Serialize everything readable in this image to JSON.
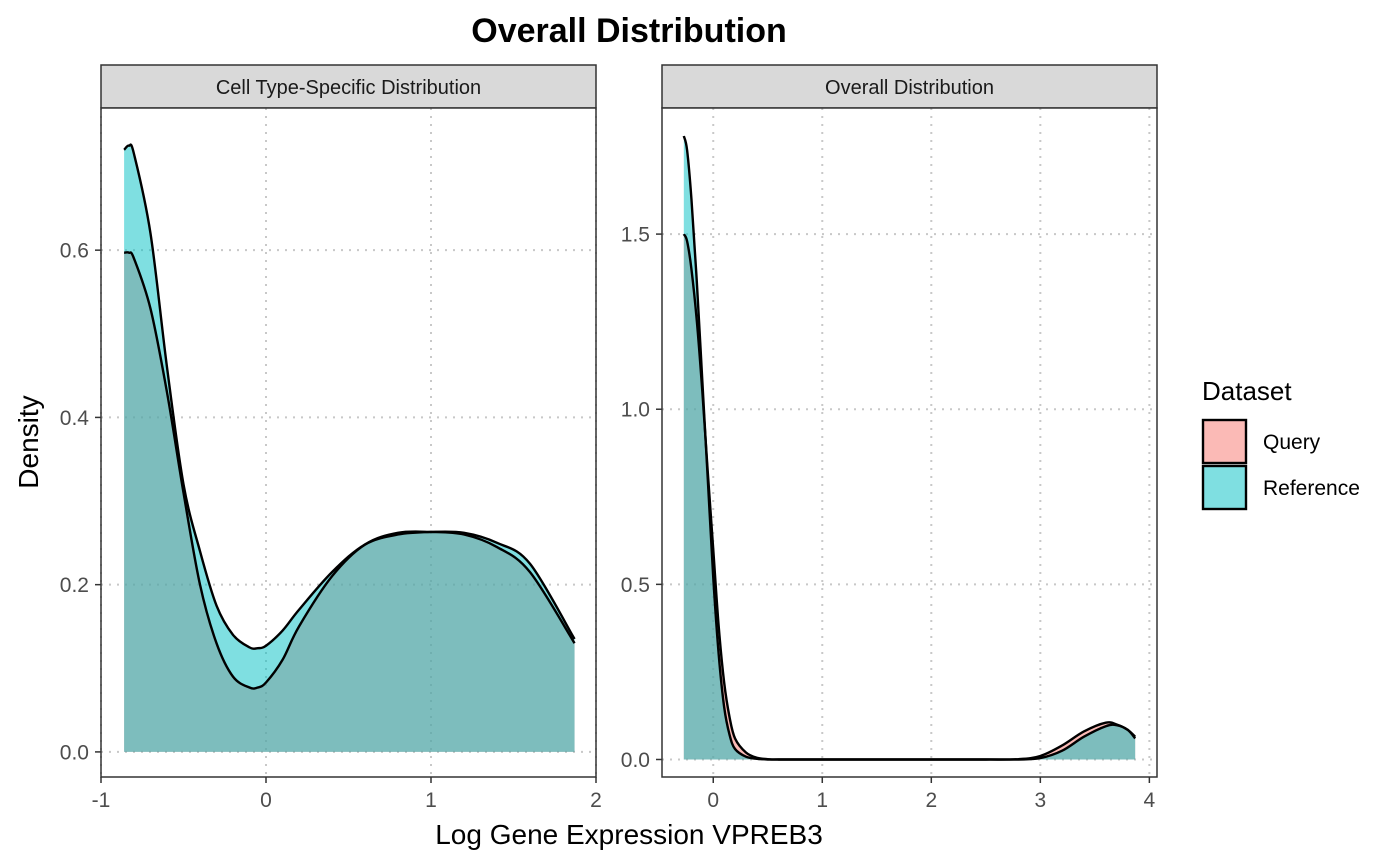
{
  "chart_data": {
    "type": "area",
    "title": "Overall Distribution",
    "xlabel": "Log Gene Expression VPREB3",
    "ylabel": "Density",
    "legend": {
      "title": "Dataset",
      "placement": "right",
      "entries": [
        {
          "name": "Query",
          "color": "#F8766D"
        },
        {
          "name": "Reference",
          "color": "#00BFC4"
        }
      ]
    },
    "panels": [
      {
        "strip": "Cell Type-Specific Distribution",
        "xlim": [
          -1,
          2
        ],
        "ylim": [
          -0.03,
          0.77
        ],
        "xticks": [
          -1,
          0,
          1,
          2
        ],
        "xtick_labels": [
          "-1",
          "0",
          "1",
          "2"
        ],
        "yticks": [
          0.0,
          0.2,
          0.4,
          0.6
        ],
        "ytick_labels": [
          "0.0",
          "0.2",
          "0.4",
          "0.6"
        ],
        "grid": true,
        "series": [
          {
            "name": "Query",
            "x": [
              -0.86,
              -0.83,
              -0.8,
              -0.7,
              -0.6,
              -0.5,
              -0.4,
              -0.3,
              -0.2,
              -0.1,
              -0.05,
              0.0,
              0.1,
              0.2,
              0.4,
              0.6,
              0.8,
              1.0,
              1.2,
              1.4,
              1.6,
              1.87
            ],
            "y": [
              0.597,
              0.597,
              0.59,
              0.53,
              0.43,
              0.31,
              0.2,
              0.13,
              0.09,
              0.077,
              0.077,
              0.083,
              0.11,
              0.15,
              0.21,
              0.248,
              0.262,
              0.263,
              0.26,
              0.245,
              0.215,
              0.13
            ]
          },
          {
            "name": "Reference",
            "x": [
              -0.86,
              -0.83,
              -0.8,
              -0.7,
              -0.6,
              -0.5,
              -0.4,
              -0.3,
              -0.2,
              -0.1,
              -0.05,
              0.0,
              0.1,
              0.2,
              0.4,
              0.6,
              0.8,
              1.0,
              1.2,
              1.4,
              1.6,
              1.87
            ],
            "y": [
              0.72,
              0.725,
              0.715,
              0.62,
              0.46,
              0.32,
              0.24,
              0.175,
              0.14,
              0.125,
              0.124,
              0.127,
              0.145,
              0.17,
              0.215,
              0.248,
              0.26,
              0.263,
              0.262,
              0.25,
              0.225,
              0.135
            ]
          }
        ]
      },
      {
        "strip": "Overall Distribution",
        "xlim": [
          -0.47,
          4.07
        ],
        "ylim": [
          -0.05,
          1.86
        ],
        "xticks": [
          0,
          1,
          2,
          3,
          4
        ],
        "xtick_labels": [
          "0",
          "1",
          "2",
          "3",
          "4"
        ],
        "yticks": [
          0.0,
          0.5,
          1.0,
          1.5
        ],
        "ytick_labels": [
          "0.0",
          "0.5",
          "1.0",
          "1.5"
        ],
        "grid": true,
        "series": [
          {
            "name": "Query",
            "x": [
              -0.27,
              -0.24,
              -0.2,
              -0.15,
              -0.1,
              -0.05,
              0.0,
              0.05,
              0.1,
              0.15,
              0.2,
              0.3,
              0.4,
              0.5,
              0.6,
              0.8,
              1.0,
              1.5,
              2.0,
              2.5,
              2.8,
              3.0,
              3.2,
              3.4,
              3.6,
              3.7,
              3.8,
              3.87
            ],
            "y": [
              1.5,
              1.48,
              1.4,
              1.25,
              1.05,
              0.82,
              0.6,
              0.38,
              0.22,
              0.12,
              0.06,
              0.02,
              0.005,
              0.001,
              0.0,
              0.0,
              0.0,
              0.0,
              0.0,
              0.0,
              0.001,
              0.01,
              0.04,
              0.08,
              0.105,
              0.1,
              0.085,
              0.065
            ]
          },
          {
            "name": "Reference",
            "x": [
              -0.27,
              -0.24,
              -0.2,
              -0.15,
              -0.1,
              -0.05,
              0.0,
              0.05,
              0.1,
              0.15,
              0.2,
              0.3,
              0.4,
              0.5,
              0.6,
              0.8,
              1.0,
              1.5,
              2.0,
              2.5,
              2.8,
              3.0,
              3.2,
              3.4,
              3.6,
              3.7,
              3.8,
              3.87
            ],
            "y": [
              1.78,
              1.74,
              1.6,
              1.36,
              1.08,
              0.8,
              0.52,
              0.3,
              0.15,
              0.07,
              0.03,
              0.008,
              0.002,
              0.0,
              0.0,
              0.0,
              0.0,
              0.0,
              0.0,
              0.0,
              0.0,
              0.004,
              0.025,
              0.065,
              0.095,
              0.098,
              0.085,
              0.06
            ]
          }
        ]
      }
    ]
  }
}
